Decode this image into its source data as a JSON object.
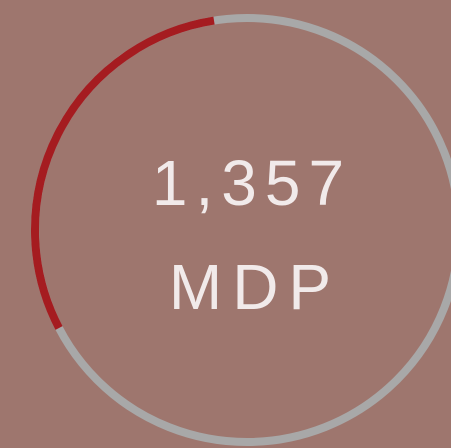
{
  "widget": {
    "value": "1,357",
    "unit": "MDP"
  }
}
